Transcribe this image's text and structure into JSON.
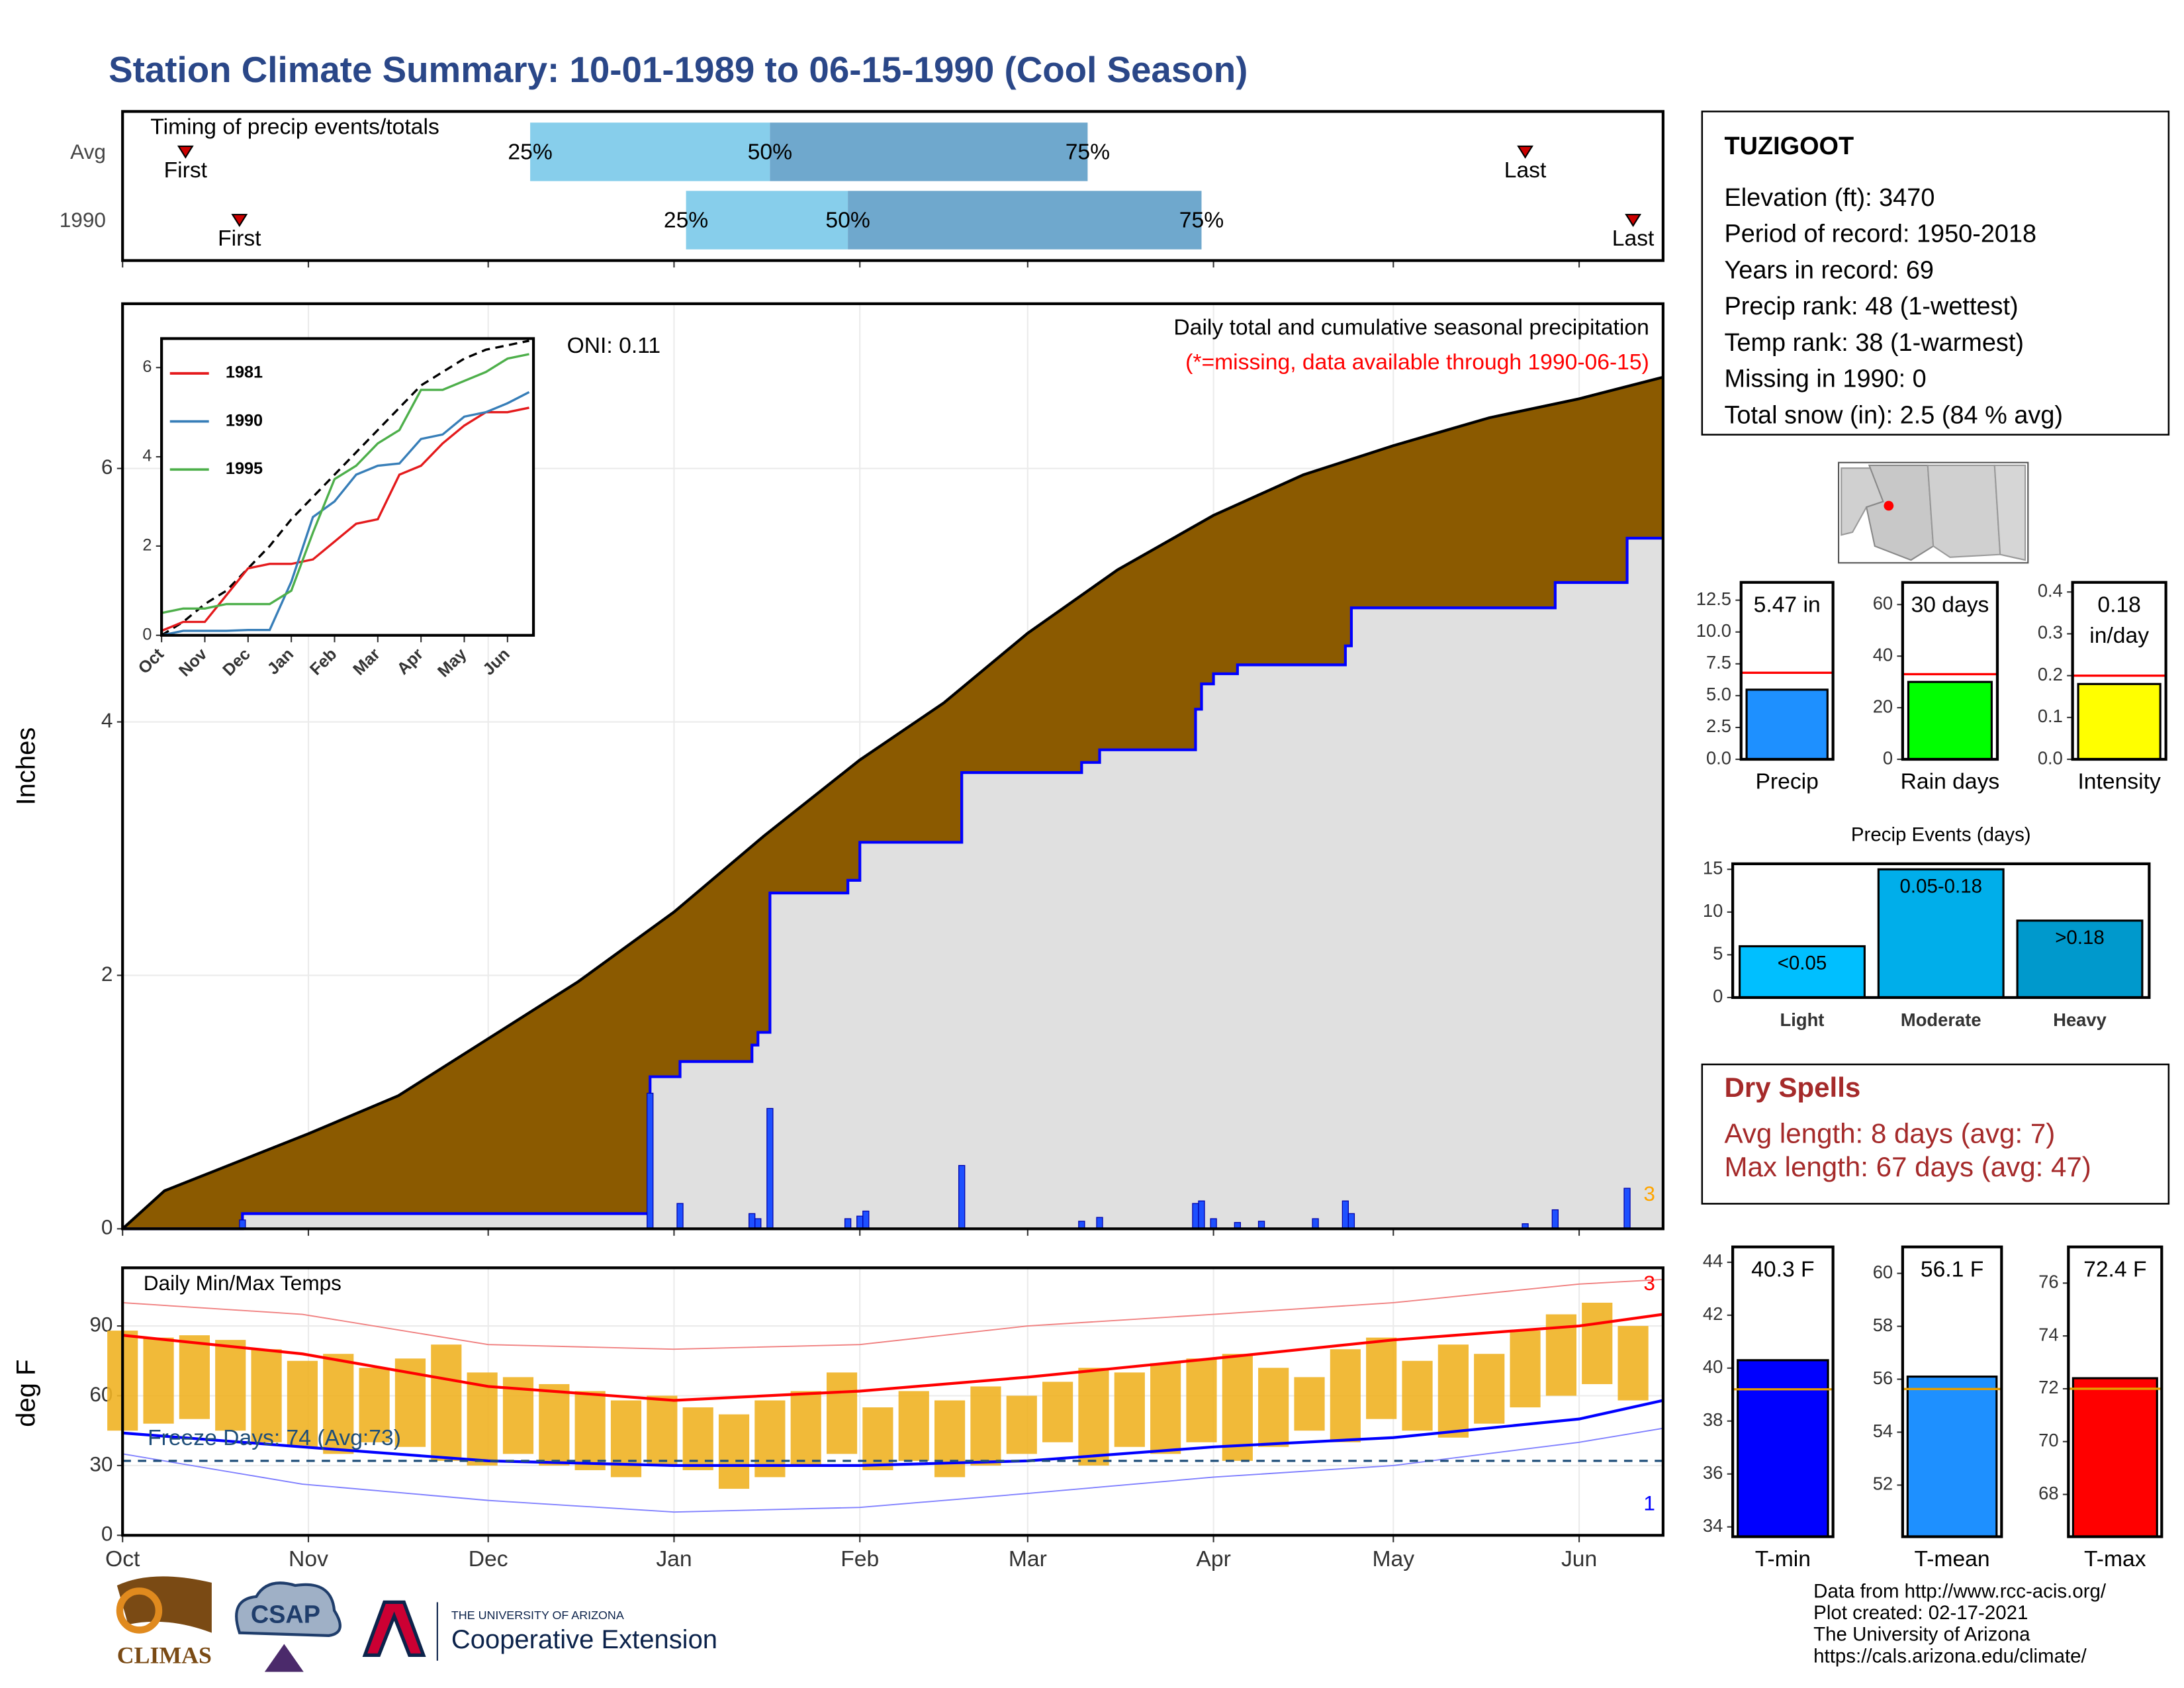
{
  "title": "Station Climate Summary: 10-01-1989 to 06-15-1990 (Cool Season)",
  "station": {
    "name": "TUZIGOOT",
    "lines": [
      "Elevation (ft): 3470",
      "Period of record: 1950-2018",
      "Years in record: 69",
      "Precip rank: 48 (1-wettest)",
      "Temp rank: 38 (1-warmest)",
      "Missing in 1990: 0",
      "Total snow (in): 2.5 (84 % avg)"
    ]
  },
  "dry_spells": {
    "title": "Dry Spells",
    "lines": [
      "Avg length: 8 days (avg: 7)",
      "Max length: 67 days (avg: 47)"
    ]
  },
  "footer": {
    "lines": [
      "Data from http://www.rcc-acis.org/",
      "Plot created: 02-17-2021",
      "The University of Arizona",
      "https://cals.arizona.edu/climate/"
    ]
  },
  "logos": {
    "climas": "CLIMAS",
    "csap": "CSAP",
    "university": "THE UNIVERSITY OF ARIZONA",
    "extension": "Cooperative Extension"
  },
  "chart_data": [
    {
      "type": "timing",
      "title": "Timing of precip events/totals",
      "categories": [
        "Avg",
        "1990"
      ],
      "quantiles": [
        [
          68,
          108,
          161
        ],
        [
          94,
          121,
          180
        ]
      ],
      "quantile_labels": [
        "25%",
        "50%",
        "75%"
      ],
      "first": [
        10.5,
        19.5
      ],
      "last": [
        234,
        252
      ],
      "marker_labels": [
        "First",
        "Last"
      ],
      "marker_color": "#cc0000",
      "colors": [
        "#87ceeb",
        "#6fa8cd"
      ],
      "xlim": [
        0,
        257
      ],
      "xticks": [
        0,
        31,
        61,
        92,
        123,
        151,
        182,
        212,
        243
      ]
    },
    {
      "type": "area",
      "oni": "ONI: 0.11",
      "subtitle": "Daily total and cumulative seasonal precipitation",
      "note": "(*=missing, data available through 1990-06-15)",
      "ylabel": "Inches",
      "annotation": "3",
      "grid": true,
      "xlim": [
        0,
        257
      ],
      "xticks": [
        0,
        31,
        61,
        92,
        123,
        151,
        182,
        212,
        243
      ],
      "ylim": [
        0,
        7.3
      ],
      "yticks": [
        0,
        2,
        4,
        6
      ],
      "average": {
        "fill": "#8b5a00",
        "color": "#000000",
        "x": [
          0,
          7,
          15,
          31,
          46,
          61,
          76,
          92,
          107,
          123,
          137,
          151,
          166,
          182,
          197,
          212,
          228,
          243,
          257
        ],
        "values": [
          0,
          0.3,
          0.45,
          0.75,
          1.05,
          1.5,
          1.95,
          2.5,
          3.1,
          3.7,
          4.15,
          4.7,
          5.2,
          5.63,
          5.95,
          6.18,
          6.4,
          6.55,
          6.72
        ]
      },
      "cumulative": {
        "fill": "#e0e0e0",
        "color": "#0000ff",
        "x": [
          0,
          20,
          20,
          88,
          88,
          93,
          93,
          105,
          105,
          106,
          106,
          108,
          108,
          121,
          121,
          123,
          123,
          140,
          140,
          160,
          160,
          163,
          163,
          179,
          179,
          180,
          180,
          182,
          182,
          186,
          186,
          204,
          204,
          205,
          205,
          239,
          239,
          251,
          251,
          257
        ],
        "values": [
          0,
          0,
          0.12,
          0.12,
          1.2,
          1.2,
          1.32,
          1.32,
          1.45,
          1.45,
          1.55,
          1.55,
          2.65,
          2.65,
          2.75,
          2.75,
          3.05,
          3.05,
          3.6,
          3.6,
          3.68,
          3.68,
          3.78,
          3.78,
          4.1,
          4.1,
          4.3,
          4.3,
          4.38,
          4.38,
          4.45,
          4.45,
          4.6,
          4.6,
          4.9,
          4.9,
          5.1,
          5.1,
          5.45,
          5.45
        ]
      },
      "daily": {
        "color": "#1e50ff",
        "x": [
          20,
          88,
          93,
          105,
          106,
          108,
          121,
          123,
          124,
          140,
          160,
          163,
          179,
          180,
          182,
          186,
          190,
          199,
          204,
          205,
          234,
          239,
          251
        ],
        "values": [
          0.07,
          1.07,
          0.2,
          0.12,
          0.08,
          0.95,
          0.08,
          0.1,
          0.14,
          0.5,
          0.06,
          0.09,
          0.2,
          0.22,
          0.08,
          0.05,
          0.06,
          0.08,
          0.22,
          0.12,
          0.04,
          0.15,
          0.32
        ]
      }
    },
    {
      "type": "line",
      "legend": "top-left",
      "xlim": [
        0,
        8.6
      ],
      "xticks": [
        {
          "value": 0,
          "label": "Oct"
        },
        {
          "value": 1,
          "label": "Nov"
        },
        {
          "value": 2,
          "label": "Dec"
        },
        {
          "value": 3,
          "label": "Jan"
        },
        {
          "value": 4,
          "label": "Feb"
        },
        {
          "value": 5,
          "label": "Mar"
        },
        {
          "value": 6,
          "label": "Apr"
        },
        {
          "value": 7,
          "label": "May"
        },
        {
          "value": 8,
          "label": "Jun"
        }
      ],
      "ylim": [
        0,
        6.65
      ],
      "yticks": [
        0,
        2,
        4,
        6
      ],
      "x": [
        0,
        0.5,
        1,
        1.5,
        2,
        2.5,
        3,
        3.5,
        4,
        4.5,
        5,
        5.5,
        6,
        6.5,
        7,
        7.5,
        8,
        8.5
      ],
      "average": {
        "color": "#000000",
        "values": [
          0,
          0.3,
          0.7,
          1.0,
          1.5,
          2.0,
          2.6,
          3.1,
          3.6,
          4.1,
          4.6,
          5.1,
          5.6,
          5.9,
          6.2,
          6.4,
          6.5,
          6.6
        ]
      },
      "series": [
        {
          "name": "1981",
          "color": "#e41a1c",
          "values": [
            0.1,
            0.3,
            0.3,
            0.9,
            1.5,
            1.6,
            1.6,
            1.7,
            2.1,
            2.5,
            2.6,
            3.6,
            3.8,
            4.3,
            4.7,
            5.0,
            5.0,
            5.1
          ]
        },
        {
          "name": "1990",
          "color": "#377eb8",
          "values": [
            0,
            0.1,
            0.1,
            0.1,
            0.12,
            0.12,
            1.2,
            2.65,
            3.0,
            3.6,
            3.8,
            3.85,
            4.4,
            4.5,
            4.9,
            5.0,
            5.2,
            5.45
          ]
        },
        {
          "name": "1995",
          "color": "#4daf4a",
          "values": [
            0.5,
            0.6,
            0.6,
            0.7,
            0.7,
            0.7,
            1.0,
            2.3,
            3.5,
            3.8,
            4.3,
            4.6,
            5.5,
            5.5,
            5.7,
            5.9,
            6.2,
            6.3
          ]
        }
      ]
    },
    {
      "type": "range",
      "title": "Daily Min/Max Temps",
      "ylabel": "deg F",
      "freeze_line": 32,
      "freeze_label": "Freeze Days: 74 (Avg:73)",
      "annotations": [
        "3",
        "1"
      ],
      "grid": true,
      "color": "#f0b323",
      "xlim": [
        0,
        257
      ],
      "xticks": [
        {
          "value": 0,
          "label": "Oct"
        },
        {
          "value": 31,
          "label": "Nov"
        },
        {
          "value": 61,
          "label": "Dec"
        },
        {
          "value": 92,
          "label": "Jan"
        },
        {
          "value": 123,
          "label": "Feb"
        },
        {
          "value": 151,
          "label": "Mar"
        },
        {
          "value": 182,
          "label": "Apr"
        },
        {
          "value": 212,
          "label": "May"
        },
        {
          "value": 243,
          "label": "Jun"
        }
      ],
      "ylim": [
        0,
        115
      ],
      "yticks": [
        0,
        30,
        60,
        90
      ],
      "x": [
        0,
        6,
        12,
        18,
        24,
        30,
        36,
        42,
        48,
        54,
        60,
        66,
        72,
        78,
        84,
        90,
        96,
        102,
        108,
        114,
        120,
        126,
        132,
        138,
        144,
        150,
        156,
        162,
        168,
        174,
        180,
        186,
        192,
        198,
        204,
        210,
        216,
        222,
        228,
        234,
        240,
        246,
        252
      ],
      "tmax": [
        88,
        85,
        86,
        84,
        80,
        75,
        78,
        72,
        76,
        82,
        70,
        68,
        65,
        62,
        58,
        60,
        55,
        52,
        58,
        62,
        70,
        55,
        62,
        58,
        64,
        60,
        66,
        72,
        70,
        74,
        76,
        78,
        72,
        68,
        80,
        85,
        75,
        82,
        78,
        88,
        95,
        100,
        90
      ],
      "tmin": [
        45,
        48,
        50,
        45,
        40,
        38,
        35,
        40,
        38,
        32,
        30,
        35,
        30,
        28,
        25,
        30,
        28,
        20,
        25,
        30,
        35,
        28,
        32,
        25,
        30,
        35,
        40,
        30,
        38,
        35,
        40,
        32,
        38,
        45,
        40,
        50,
        45,
        42,
        48,
        55,
        60,
        65,
        58
      ],
      "avg_x": [
        0,
        30,
        61,
        92,
        123,
        151,
        182,
        212,
        243,
        257
      ],
      "avg_max": {
        "color": "#ff0000",
        "values": [
          86,
          78,
          64,
          58,
          62,
          68,
          76,
          84,
          90,
          95
        ]
      },
      "avg_min": {
        "color": "#0000ff",
        "values": [
          44,
          38,
          32,
          30,
          30,
          32,
          38,
          42,
          50,
          58
        ]
      },
      "record_max": {
        "color": "#f08080",
        "values": [
          100,
          95,
          82,
          80,
          82,
          90,
          95,
          100,
          108,
          110
        ]
      },
      "record_min": {
        "color": "#8080ff",
        "values": [
          35,
          22,
          15,
          10,
          12,
          18,
          25,
          30,
          40,
          46
        ]
      }
    },
    {
      "type": "bar",
      "categories": [
        "Precip"
      ],
      "values": [
        5.47
      ],
      "value_labels": [
        "5.47 in"
      ],
      "color": "#1e90ff",
      "reference": 6.8,
      "reference_color": "#ff0000",
      "ylim": [
        0,
        13.9
      ],
      "yticks": [
        {
          "value": 0,
          "label": "0.0"
        },
        2.5,
        {
          "value": 5,
          "label": "5.0"
        },
        7.5,
        {
          "value": 10,
          "label": "10.0"
        },
        12.5
      ]
    },
    {
      "type": "bar",
      "categories": [
        "Rain days"
      ],
      "values": [
        30
      ],
      "value_labels": [
        "30 days"
      ],
      "color": "#00ff00",
      "reference": 33,
      "reference_color": "#ff0000",
      "ylim": [
        0,
        68.6
      ],
      "yticks": [
        0,
        20,
        40,
        60
      ]
    },
    {
      "type": "bar",
      "categories": [
        "Intensity"
      ],
      "values": [
        0.18
      ],
      "value_labels": [
        "0.18 in/day"
      ],
      "color": "#ffff00",
      "reference": 0.2,
      "reference_color": "#ff0000",
      "ylim": [
        0,
        0.423
      ],
      "yticks": [
        {
          "value": 0,
          "label": "0.0"
        },
        0.1,
        0.2,
        0.3,
        0.4
      ]
    },
    {
      "type": "bar",
      "title": "Precip Events (days)",
      "categories": [
        "Light",
        "Moderate",
        "Heavy"
      ],
      "values": [
        6,
        15,
        9
      ],
      "value_labels": [
        "<0.05",
        "0.05-0.18",
        ">0.18"
      ],
      "colors": [
        "#00bfff",
        "#00aeea",
        "#0099cc"
      ],
      "ylim": [
        0,
        15.65
      ],
      "yticks": [
        0,
        5,
        10,
        15
      ]
    },
    {
      "type": "bar",
      "categories": [
        "T-min"
      ],
      "values": [
        40.3
      ],
      "value_labels": [
        "40.3 F"
      ],
      "color": "#0000ff",
      "reference": 39.2,
      "reference_color": "#e69f00",
      "ylim": [
        33.63,
        44.58
      ],
      "yticks": [
        34,
        36,
        38,
        40,
        42,
        44
      ]
    },
    {
      "type": "bar",
      "categories": [
        "T-mean"
      ],
      "values": [
        56.1
      ],
      "value_labels": [
        "56.1 F"
      ],
      "color": "#1e90ff",
      "reference": 55.63,
      "reference_color": "#e69f00",
      "ylim": [
        50.05,
        61.0
      ],
      "yticks": [
        52,
        54,
        56,
        58,
        60
      ]
    },
    {
      "type": "bar",
      "categories": [
        "T-max"
      ],
      "values": [
        72.4
      ],
      "value_labels": [
        "72.4 F"
      ],
      "color": "#ff0000",
      "reference": 72.0,
      "reference_color": "#e69f00",
      "ylim": [
        66.4,
        77.37
      ],
      "yticks": [
        68,
        70,
        72,
        74,
        76
      ]
    }
  ]
}
